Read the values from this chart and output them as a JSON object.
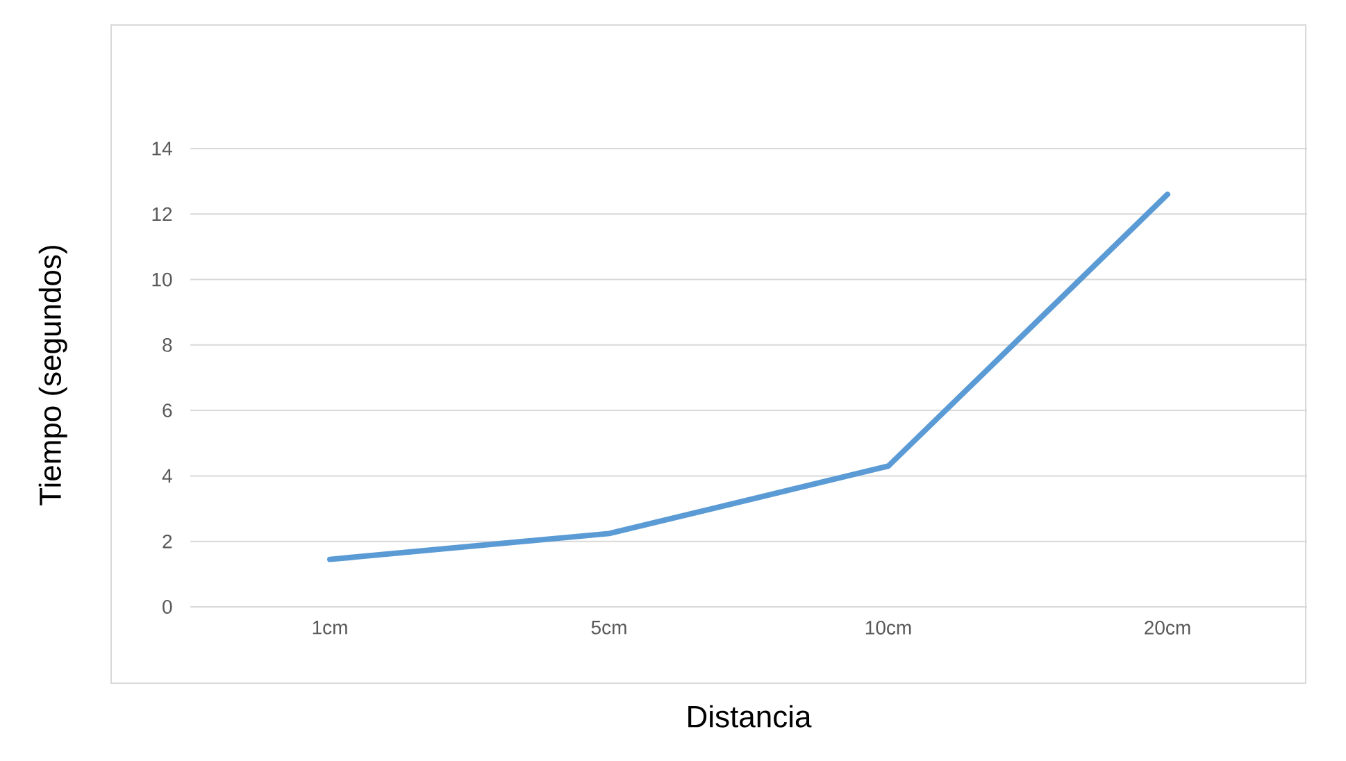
{
  "chart_data": {
    "type": "line",
    "xlabel": "Distancia",
    "ylabel": "Tiempo (segundos)",
    "categories": [
      "1cm",
      "5cm",
      "10cm",
      "20cm"
    ],
    "series": [
      {
        "color": "#5b9bd5",
        "values": [
          1.45,
          2.24,
          4.3,
          12.6
        ]
      }
    ],
    "ylim": [
      0,
      14
    ],
    "yticks": [
      0,
      2,
      4,
      6,
      8,
      10,
      12,
      14
    ],
    "grid": "y",
    "line_style": "solid"
  }
}
